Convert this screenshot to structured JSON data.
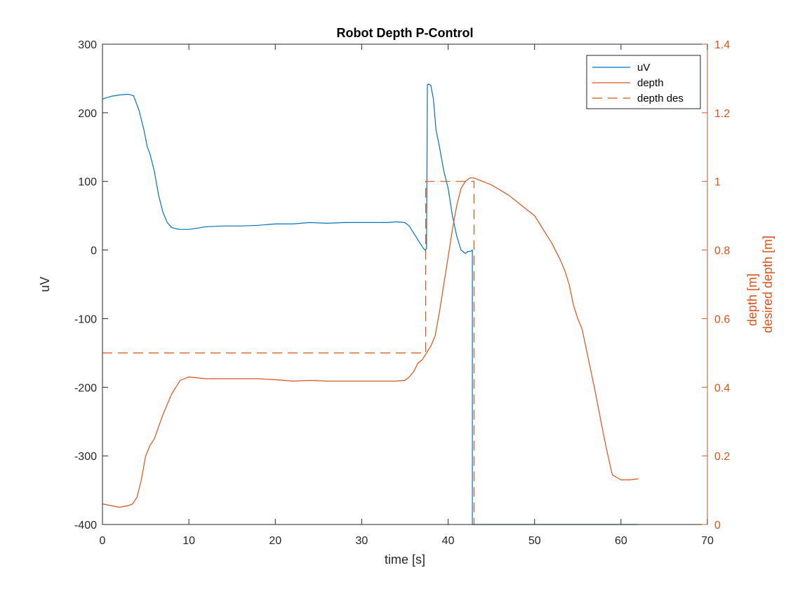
{
  "chart_data": {
    "type": "line",
    "title": "Robot Depth P-Control",
    "xlabel": "time [s]",
    "ylabel_left": "uV",
    "ylabel_right": [
      "depth [m]",
      "desired depth [m]"
    ],
    "xlim": [
      0,
      70
    ],
    "ylim_left": [
      -400,
      300
    ],
    "ylim_right": [
      0,
      1.4
    ],
    "x_ticks": [
      0,
      10,
      20,
      30,
      40,
      50,
      60,
      70
    ],
    "x_tick_labels": [
      "0",
      "10",
      "20",
      "30",
      "40",
      "50",
      "60",
      "70"
    ],
    "y_ticks_left": [
      300,
      200,
      100,
      0,
      -100,
      -200,
      -300,
      -400
    ],
    "y_tick_labels_left": [
      "300",
      "200",
      "100",
      "0",
      "-100",
      "-200",
      "-300",
      "-400"
    ],
    "y_ticks_right": [
      1.4,
      1.2,
      1,
      0.8,
      0.6,
      0.4,
      0.2,
      0
    ],
    "y_tick_labels_right": [
      "1.4",
      "1.2",
      "1",
      "0.8",
      "0.6",
      "0.4",
      "0.2",
      "0"
    ],
    "grid": false,
    "legend_position": "top-right",
    "colors": {
      "uV": "#0072BD",
      "depth": "#D95319",
      "depth_des": "#D95319",
      "axis": "#262626",
      "right_axis": "#D95319"
    },
    "series": [
      {
        "name": "uV",
        "axis": "left",
        "style": "solid",
        "x": [
          0,
          1,
          2,
          3,
          3.6,
          4.2,
          4.8,
          5.2,
          5.5,
          6,
          6.5,
          7,
          7.5,
          8,
          8.5,
          9,
          10,
          11,
          12,
          14,
          16,
          18,
          20,
          22,
          24,
          26,
          28,
          30,
          32,
          33,
          34,
          35,
          35.5,
          36,
          36.5,
          37,
          37.3,
          37.5,
          37.6,
          37.7,
          38,
          38.3,
          38.6,
          39,
          39.5,
          40,
          40.5,
          41,
          41.5,
          42,
          42.3,
          42.6,
          42.8,
          42.8,
          43,
          45,
          50,
          55,
          60,
          62
        ],
        "y": [
          220,
          224,
          226,
          227,
          225,
          205,
          175,
          150,
          140,
          115,
          80,
          55,
          40,
          33,
          31,
          30,
          30,
          32,
          34,
          35,
          35,
          36,
          38,
          38,
          40,
          39,
          40,
          40,
          40,
          40,
          41,
          40,
          35,
          25,
          15,
          5,
          0,
          2,
          240,
          242,
          240,
          220,
          175,
          150,
          115,
          90,
          50,
          20,
          0,
          -5,
          -2,
          -2,
          0,
          -400,
          -400,
          -400,
          -400,
          -400,
          -400,
          -400
        ]
      },
      {
        "name": "depth",
        "axis": "right",
        "style": "solid",
        "x": [
          0,
          1,
          2,
          3,
          3.5,
          4,
          4.5,
          5,
          5.5,
          6,
          7,
          8,
          9,
          10,
          12,
          14,
          16,
          18,
          20,
          22,
          24,
          26,
          28,
          30,
          32,
          34,
          35,
          35.5,
          36,
          36.5,
          37,
          37.5,
          38,
          38.5,
          39,
          39.5,
          40,
          40.5,
          41,
          41.5,
          42,
          42.5,
          43,
          43.5,
          44,
          45,
          46,
          47,
          48,
          49,
          50,
          51,
          52,
          53,
          53.5,
          54,
          54.5,
          55,
          55.5,
          56,
          57,
          58,
          58.5,
          59,
          60,
          61,
          62
        ],
        "y": [
          0.06,
          0.055,
          0.05,
          0.055,
          0.06,
          0.08,
          0.13,
          0.2,
          0.23,
          0.25,
          0.32,
          0.38,
          0.42,
          0.43,
          0.425,
          0.425,
          0.425,
          0.425,
          0.422,
          0.418,
          0.42,
          0.418,
          0.418,
          0.418,
          0.418,
          0.418,
          0.42,
          0.43,
          0.445,
          0.47,
          0.48,
          0.5,
          0.52,
          0.55,
          0.62,
          0.7,
          0.78,
          0.86,
          0.93,
          0.98,
          1.0,
          1.01,
          1.01,
          1.005,
          1.0,
          0.99,
          0.975,
          0.96,
          0.94,
          0.92,
          0.9,
          0.86,
          0.82,
          0.77,
          0.74,
          0.7,
          0.64,
          0.6,
          0.57,
          0.51,
          0.39,
          0.26,
          0.2,
          0.145,
          0.13,
          0.13,
          0.133
        ]
      },
      {
        "name": "depth des",
        "axis": "right",
        "style": "dashed",
        "x": [
          0,
          37.4,
          37.4,
          43,
          43
        ],
        "y": [
          0.5,
          0.5,
          1.0,
          1.0,
          0.0
        ]
      }
    ],
    "legend": [
      "uV",
      "depth",
      "depth des"
    ]
  }
}
